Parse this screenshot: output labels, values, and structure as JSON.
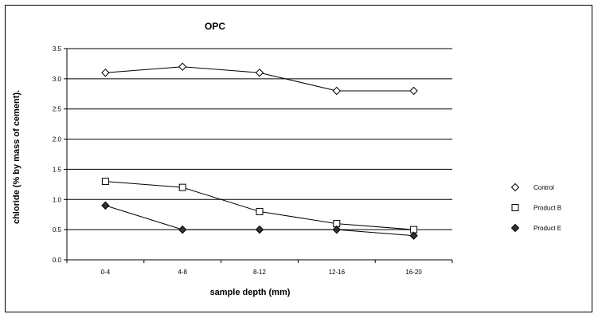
{
  "chart_data": {
    "type": "line",
    "title": "OPC",
    "xlabel": "sample depth (mm)",
    "ylabel": "chloride (% by mass of cement).",
    "categories": [
      "0-4",
      "4-8",
      "8-12",
      "12-16",
      "16-20"
    ],
    "ylim": [
      0,
      3.5
    ],
    "yticks": [
      "0.0",
      "0.5",
      "1.0",
      "1.5",
      "2.0",
      "2.5",
      "3.0",
      "3.5"
    ],
    "grid": "horizontal",
    "legend_position": "right",
    "series": [
      {
        "name": "Control",
        "marker": "diamond-open",
        "color": "#000000",
        "values": [
          3.1,
          3.2,
          3.1,
          2.8,
          2.8
        ]
      },
      {
        "name": "Product B",
        "marker": "square-open",
        "color": "#000000",
        "values": [
          1.3,
          1.2,
          0.8,
          0.6,
          0.5
        ]
      },
      {
        "name": "Product E",
        "marker": "diamond-filled",
        "color": "#000000",
        "values": [
          0.9,
          0.5,
          0.5,
          0.5,
          0.4
        ]
      }
    ]
  }
}
